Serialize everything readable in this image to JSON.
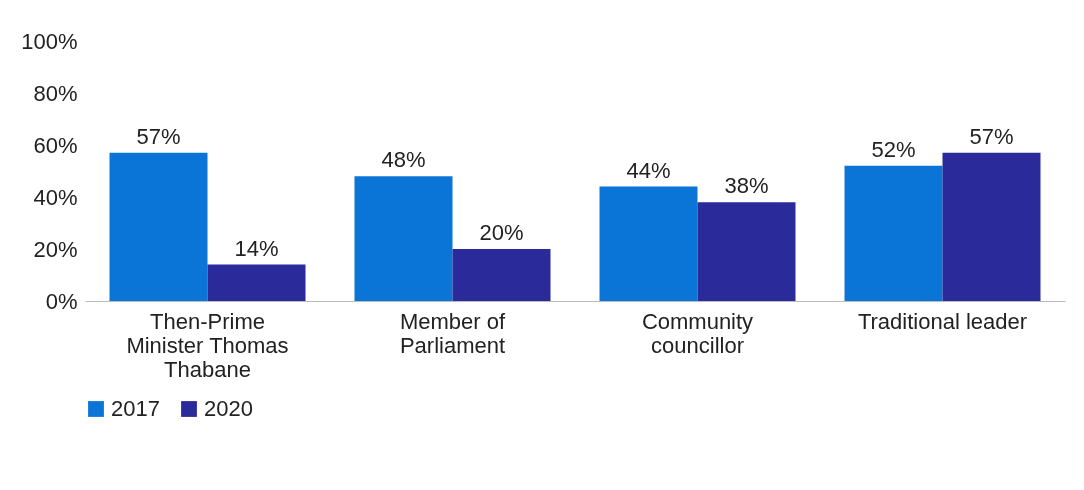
{
  "chart_data": {
    "type": "bar",
    "categories": [
      "Then-Prime Minister Thomas Thabane",
      "Member of Parliament",
      "Community councillor",
      "Traditional leader"
    ],
    "series": [
      {
        "name": "2017",
        "color": "#0a75d6",
        "values": [
          57,
          48,
          44,
          52
        ],
        "value_labels": [
          "57%",
          "48%",
          "44%",
          "52%"
        ]
      },
      {
        "name": "2020",
        "color": "#2a2a9b",
        "values": [
          14,
          20,
          38,
          57
        ],
        "value_labels": [
          "14%",
          "20%",
          "38%",
          "57%"
        ]
      }
    ],
    "ylim": [
      0,
      100
    ],
    "yticks": [
      {
        "value": 0,
        "label": "0%"
      },
      {
        "value": 20,
        "label": "20%"
      },
      {
        "value": 40,
        "label": "40%"
      },
      {
        "value": 60,
        "label": "60%"
      },
      {
        "value": 80,
        "label": "80%"
      },
      {
        "value": 100,
        "label": "100%"
      }
    ],
    "grid": false,
    "legend": "bottom"
  }
}
